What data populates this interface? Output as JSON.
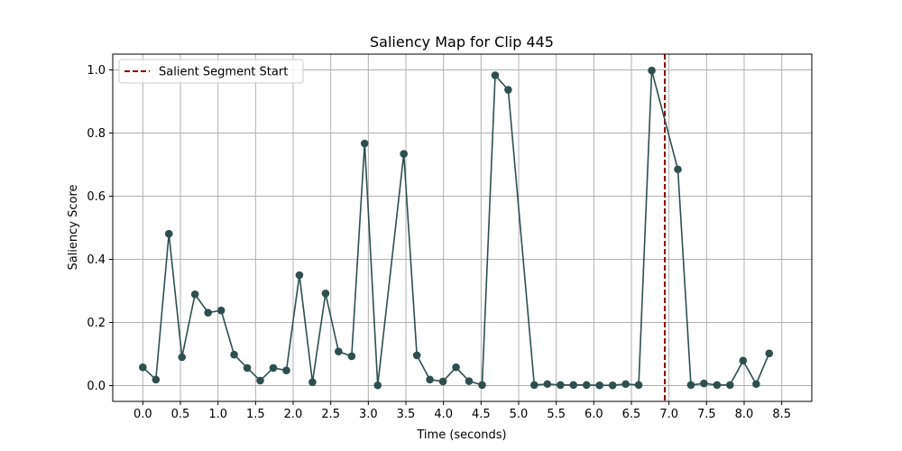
{
  "chart_data": {
    "type": "line",
    "title": "Saliency Map for Clip 445",
    "xlabel": "Time (seconds)",
    "ylabel": "Saliency Score",
    "xlim": [
      -0.4,
      8.9
    ],
    "ylim": [
      -0.05,
      1.05
    ],
    "xticks": [
      0.0,
      0.5,
      1.0,
      1.5,
      2.0,
      2.5,
      3.0,
      3.5,
      4.0,
      4.5,
      5.0,
      5.5,
      6.0,
      6.5,
      7.0,
      7.5,
      8.0,
      8.5
    ],
    "xtick_labels": [
      "0.0",
      "0.5",
      "1.0",
      "1.5",
      "2.0",
      "2.5",
      "3.0",
      "3.5",
      "4.0",
      "4.5",
      "5.0",
      "5.5",
      "6.0",
      "6.5",
      "7.0",
      "7.5",
      "8.0",
      "8.5"
    ],
    "yticks": [
      0.0,
      0.2,
      0.4,
      0.6,
      0.8,
      1.0
    ],
    "ytick_labels": [
      "0.0",
      "0.2",
      "0.4",
      "0.6",
      "0.8",
      "1.0"
    ],
    "grid": true,
    "series": [
      {
        "color": "#2f4f4f",
        "x": [
          0.0,
          0.174,
          0.347,
          0.521,
          0.694,
          0.868,
          1.042,
          1.215,
          1.389,
          1.562,
          1.736,
          1.91,
          2.083,
          2.257,
          2.431,
          2.604,
          2.778,
          2.951,
          3.125,
          3.299,
          3.472,
          3.646,
          3.819,
          3.993,
          4.167,
          4.34,
          4.514,
          4.688,
          4.861,
          5.035,
          5.208,
          5.382,
          5.556,
          5.729,
          5.903,
          6.076,
          6.25,
          6.424,
          6.597,
          6.771,
          6.944,
          7.118,
          7.292,
          7.465,
          7.639,
          7.812,
          7.986,
          8.16,
          8.333,
          8.507
        ],
        "y": [
          0.058,
          0.019,
          0.481,
          0.09,
          0.289,
          0.231,
          0.238,
          0.098,
          0.056,
          0.016,
          0.056,
          0.048,
          0.35,
          0.011,
          0.292,
          0.108,
          0.093,
          0.767,
          0.001,
          null,
          0.734,
          0.096,
          0.019,
          0.013,
          0.058,
          0.014,
          0.002,
          0.983,
          0.937,
          null,
          0.002,
          0.005,
          0.002,
          0.002,
          0.002,
          0.001,
          0.001,
          0.005,
          0.002,
          0.998,
          null,
          0.685,
          0.002,
          0.007,
          0.002,
          0.002,
          0.079,
          0.005,
          0.102,
          null
        ]
      }
    ],
    "vline": {
      "x": 6.944,
      "color": "#8b0000",
      "style": "dashed"
    },
    "legend": {
      "position": "top-left",
      "label": "Salient Segment Start"
    }
  }
}
